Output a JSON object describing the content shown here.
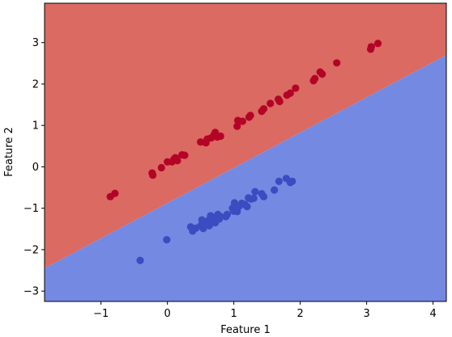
{
  "chart_data": {
    "type": "scatter",
    "title": "",
    "xlabel": "Feature 1",
    "ylabel": "Feature 2",
    "xlim": [
      -1.85,
      4.2
    ],
    "ylim": [
      -3.25,
      3.95
    ],
    "x_ticks": [
      -1,
      0,
      1,
      2,
      3,
      4
    ],
    "y_ticks": [
      -3,
      -2,
      -1,
      0,
      1,
      2,
      3
    ],
    "x_tick_labels": [
      "−1",
      "0",
      "1",
      "2",
      "3",
      "4"
    ],
    "y_tick_labels": [
      "−3",
      "−2",
      "−1",
      "0",
      "1",
      "2",
      "3"
    ],
    "grid": false,
    "decision_boundary": {
      "x": [
        -1.85,
        4.2
      ],
      "y": [
        -2.45,
        2.7
      ]
    },
    "regions": [
      {
        "side": "above",
        "color": "#da6a62"
      },
      {
        "side": "below",
        "color": "#7489e2"
      }
    ],
    "series": [
      {
        "color": "#b40426",
        "points": [
          [
            -0.86,
            -0.72
          ],
          [
            -0.79,
            -0.64
          ],
          [
            -0.23,
            -0.15
          ],
          [
            -0.22,
            -0.2
          ],
          [
            -0.09,
            -0.02
          ],
          [
            0.0,
            0.12
          ],
          [
            0.07,
            0.12
          ],
          [
            0.1,
            0.19
          ],
          [
            0.12,
            0.22
          ],
          [
            0.15,
            0.15
          ],
          [
            0.22,
            0.29
          ],
          [
            0.26,
            0.28
          ],
          [
            0.5,
            0.6
          ],
          [
            0.58,
            0.58
          ],
          [
            0.6,
            0.67
          ],
          [
            0.66,
            0.7
          ],
          [
            0.7,
            0.76
          ],
          [
            0.72,
            0.83
          ],
          [
            0.75,
            0.72
          ],
          [
            0.8,
            0.74
          ],
          [
            1.05,
            0.98
          ],
          [
            1.06,
            1.12
          ],
          [
            1.13,
            1.1
          ],
          [
            1.23,
            1.2
          ],
          [
            1.25,
            1.24
          ],
          [
            1.42,
            1.34
          ],
          [
            1.45,
            1.4
          ],
          [
            1.55,
            1.53
          ],
          [
            1.67,
            1.63
          ],
          [
            1.69,
            1.58
          ],
          [
            1.8,
            1.73
          ],
          [
            1.85,
            1.78
          ],
          [
            1.93,
            1.9
          ],
          [
            2.2,
            2.08
          ],
          [
            2.22,
            2.13
          ],
          [
            2.3,
            2.29
          ],
          [
            2.33,
            2.24
          ],
          [
            2.55,
            2.51
          ],
          [
            3.06,
            2.84
          ],
          [
            3.07,
            2.9
          ],
          [
            3.17,
            2.98
          ]
        ]
      },
      {
        "color": "#3b4cc0",
        "points": [
          [
            -0.41,
            -2.26
          ],
          [
            -0.01,
            -1.76
          ],
          [
            0.35,
            -1.45
          ],
          [
            0.38,
            -1.55
          ],
          [
            0.43,
            -1.48
          ],
          [
            0.5,
            -1.42
          ],
          [
            0.52,
            -1.28
          ],
          [
            0.54,
            -1.49
          ],
          [
            0.58,
            -1.38
          ],
          [
            0.62,
            -1.29
          ],
          [
            0.63,
            -1.42
          ],
          [
            0.65,
            -1.18
          ],
          [
            0.68,
            -1.32
          ],
          [
            0.7,
            -1.23
          ],
          [
            0.72,
            -1.35
          ],
          [
            0.76,
            -1.15
          ],
          [
            0.78,
            -1.26
          ],
          [
            0.8,
            -1.2
          ],
          [
            0.88,
            -1.2
          ],
          [
            0.9,
            -1.15
          ],
          [
            0.98,
            -1.0
          ],
          [
            1.0,
            -1.07
          ],
          [
            1.01,
            -0.87
          ],
          [
            1.03,
            -0.96
          ],
          [
            1.05,
            -1.08
          ],
          [
            1.08,
            -0.95
          ],
          [
            1.12,
            -0.88
          ],
          [
            1.17,
            -0.91
          ],
          [
            1.2,
            -0.96
          ],
          [
            1.22,
            -0.75
          ],
          [
            1.26,
            -0.78
          ],
          [
            1.3,
            -0.76
          ],
          [
            1.32,
            -0.6
          ],
          [
            1.42,
            -0.65
          ],
          [
            1.45,
            -0.72
          ],
          [
            1.61,
            -0.56
          ],
          [
            1.68,
            -0.35
          ],
          [
            1.79,
            -0.28
          ],
          [
            1.85,
            -0.38
          ],
          [
            1.88,
            -0.35
          ]
        ]
      }
    ]
  }
}
